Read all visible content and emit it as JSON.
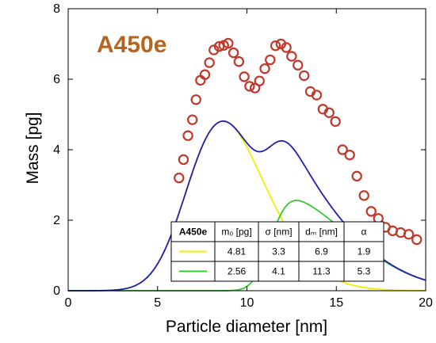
{
  "chart_data": {
    "type": "line",
    "title": "",
    "sample_label": "A450e",
    "xlabel": "Particle diameter [nm]",
    "ylabel": "Mass [pg]",
    "xlim": [
      0,
      20
    ],
    "ylim": [
      0,
      8
    ],
    "x_ticks": [
      0,
      5,
      10,
      15,
      20
    ],
    "y_ticks": [
      0,
      2,
      4,
      6,
      8
    ],
    "grid": false,
    "colors": {
      "sample_label": "#b5651d",
      "measured": "#c0392b",
      "fit_total": "#1f1fb4",
      "fit_1": "#f0f000",
      "fit_2": "#33cc33"
    },
    "measured": {
      "marker": "circle",
      "x": [
        6.2,
        6.45,
        6.7,
        6.95,
        7.15,
        7.4,
        7.65,
        7.9,
        8.15,
        8.45,
        8.7,
        8.95,
        9.25,
        9.55,
        9.85,
        10.15,
        10.45,
        10.7,
        11.0,
        11.3,
        11.6,
        11.9,
        12.2,
        12.5,
        12.85,
        13.2,
        13.55,
        13.9,
        14.25,
        14.6,
        14.95,
        15.35,
        15.75,
        16.15,
        16.55,
        16.95,
        17.35,
        17.75,
        18.15,
        18.6,
        19.05,
        19.5
      ],
      "y": [
        3.2,
        3.72,
        4.4,
        4.85,
        5.42,
        5.97,
        6.13,
        6.47,
        6.83,
        6.93,
        6.96,
        7.02,
        6.75,
        6.5,
        6.07,
        5.8,
        5.75,
        5.95,
        6.3,
        6.55,
        6.95,
        7.0,
        6.9,
        6.65,
        6.4,
        6.1,
        5.65,
        5.55,
        5.15,
        5.05,
        4.8,
        4.0,
        3.85,
        3.25,
        2.7,
        2.25,
        2.05,
        1.8,
        1.7,
        1.65,
        1.6,
        1.45
      ]
    },
    "legend_table": {
      "headers": [
        "A450e",
        "m₀ [pg]",
        "σ [nm]",
        "dₘ [nm]",
        "α"
      ],
      "rows": [
        {
          "series": "fit_1",
          "values": [
            "4.81",
            "3.3",
            "6.9",
            "1.9"
          ]
        },
        {
          "series": "fit_2",
          "values": [
            "2.56",
            "4.1",
            "11.3",
            "5.3"
          ]
        }
      ]
    },
    "series": [
      {
        "id": "fit_1",
        "m0": 4.81,
        "sigma": 3.3,
        "dm": 6.9,
        "alpha": 1.9
      },
      {
        "id": "fit_2",
        "m0": 2.56,
        "sigma": 4.1,
        "dm": 11.3,
        "alpha": 5.3
      },
      {
        "id": "fit_total"
      }
    ]
  }
}
